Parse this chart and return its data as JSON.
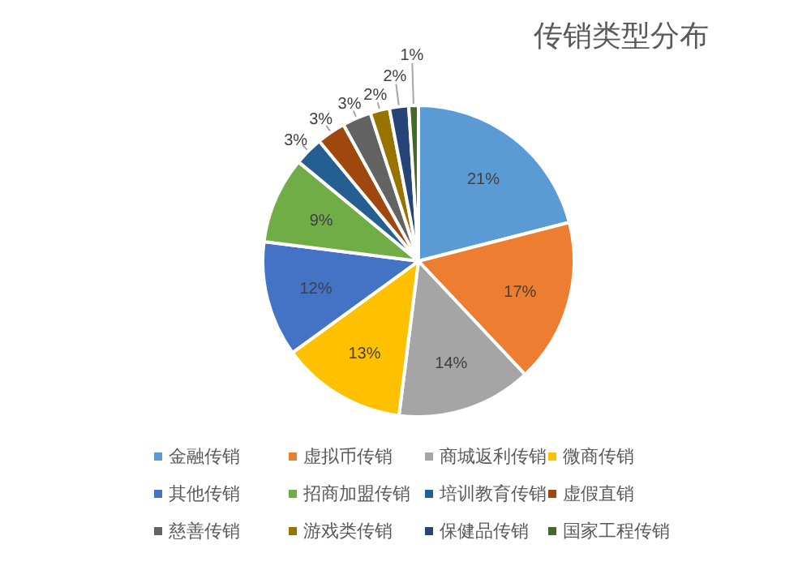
{
  "chart_data": {
    "type": "pie",
    "title": "传销类型分布",
    "categories": [
      "金融传销",
      "虚拟币传销",
      "商城返利传销",
      "微商传销",
      "其他传销",
      "招商加盟传销",
      "培训教育传销",
      "虚假直销",
      "慈善传销",
      "游戏类传销",
      "保健品传销",
      "国家工程传销"
    ],
    "values": [
      21,
      17,
      14,
      13,
      12,
      9,
      3,
      3,
      3,
      2,
      2,
      1
    ],
    "colors": [
      "#5b9bd5",
      "#ed7d31",
      "#a5a5a5",
      "#ffc000",
      "#4472c4",
      "#70ad47",
      "#255e91",
      "#9e480e",
      "#636363",
      "#997300",
      "#264478",
      "#43682b"
    ],
    "value_labels": [
      "21%",
      "17%",
      "14%",
      "13%",
      "12%",
      "9%",
      "3%",
      "3%",
      "3%",
      "2%",
      "2%",
      "1%"
    ],
    "legend": "bottom"
  }
}
